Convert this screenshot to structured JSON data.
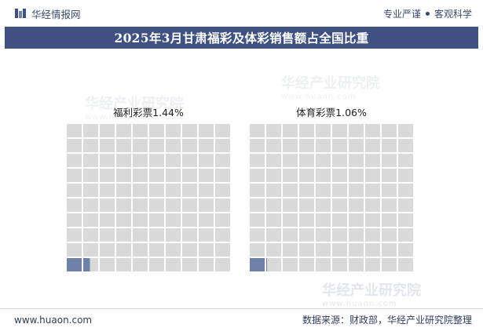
{
  "header": {
    "brand_name": "华经情报网",
    "slogan_left": "专业严谨",
    "slogan_right": "客观科学"
  },
  "title": "2025年3月甘肃福彩及体彩销售额占全国比重",
  "watermark": {
    "name": "华经产业研究院",
    "url": "www.huaon.com"
  },
  "footer": {
    "website": "www.huaon.com",
    "source": "数据来源：财政部，华经产业研究院整理"
  },
  "colors": {
    "filled": "#6e81a8",
    "empty": "#d9d9d9",
    "title_bg": "#3e5180"
  },
  "chart_data": {
    "type": "waffle",
    "total_cells": 100,
    "series": [
      {
        "name": "福利彩票",
        "value": 1.44,
        "unit": "%",
        "label": "福利彩票1.44%"
      },
      {
        "name": "体育彩票",
        "value": 1.06,
        "unit": "%",
        "label": "体育彩票1.06%"
      }
    ]
  }
}
